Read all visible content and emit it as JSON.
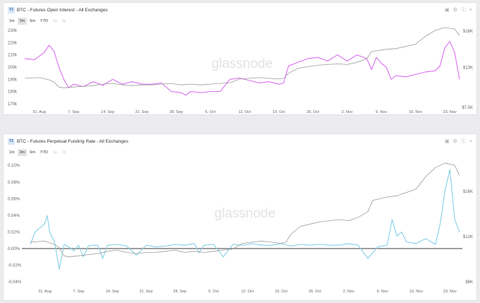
{
  "colors": {
    "purple": "#d96ff0",
    "blue": "#86cfe6",
    "price": "#9c9c9c",
    "axis_text": "#666666",
    "watermark": "#e3e3e3"
  },
  "watermark": "glassnode",
  "panels": [
    {
      "tier": "T2",
      "title": "BTC - Futures Open Interest - All Exchanges",
      "icons": [
        "camera-icon",
        "settings-icon",
        "info-icon",
        "close-icon"
      ],
      "ranges": [
        {
          "label": "1m",
          "state": "normal"
        },
        {
          "label": "3m",
          "state": "active"
        },
        {
          "label": "6m",
          "state": "normal"
        },
        {
          "label": "YTD",
          "state": "normal"
        },
        {
          "label": "1y",
          "state": "disabled"
        },
        {
          "label": "2y",
          "state": "disabled"
        }
      ]
    },
    {
      "tier": "T2",
      "title": "BTC - Futures Perpetual Funding Rate - All Exchanges",
      "icons": [
        "camera-icon",
        "settings-icon",
        "info-icon",
        "close-icon"
      ],
      "ranges": [
        {
          "label": "1m",
          "state": "normal"
        },
        {
          "label": "3m",
          "state": "active"
        },
        {
          "label": "6m",
          "state": "normal"
        },
        {
          "label": "YTD",
          "state": "normal"
        },
        {
          "label": "1y",
          "state": "disabled"
        },
        {
          "label": "2y",
          "state": "disabled"
        }
      ]
    }
  ],
  "chart_data": [
    {
      "type": "line",
      "title": "BTC - Futures Open Interest - All Exchanges",
      "x_ticks": [
        "31. Aug",
        "7. Sep",
        "14. Sep",
        "21. Sep",
        "28. Sep",
        "5. Oct",
        "12. Oct",
        "19. Oct",
        "26. Oct",
        "2. Nov",
        "9. Nov",
        "16. Nov",
        "23. Nov"
      ],
      "x_range": [
        0,
        89
      ],
      "y_left_ticks": [
        "230k",
        "220k",
        "210k",
        "200k",
        "190k",
        "180k",
        "170k"
      ],
      "y_left_values": [
        230,
        220,
        210,
        200,
        190,
        180,
        170
      ],
      "y_left_range": [
        167,
        233
      ],
      "y_right_ticks": [
        "$18K",
        "$13K",
        "$7.5K"
      ],
      "y_right_values": [
        18,
        13,
        7.5
      ],
      "y_right_range": [
        7.5,
        18.6
      ],
      "series": [
        {
          "name": "Futures Open Interest (BTC)",
          "color": "purple",
          "axis": "left",
          "points": [
            [
              0,
              207
            ],
            [
              2,
              206
            ],
            [
              4,
              212
            ],
            [
              5,
              218
            ],
            [
              6,
              213
            ],
            [
              7,
              200
            ],
            [
              8,
              190
            ],
            [
              9,
              183
            ],
            [
              10,
              186
            ],
            [
              12,
              184
            ],
            [
              14,
              188
            ],
            [
              16,
              185
            ],
            [
              18,
              190
            ],
            [
              20,
              186
            ],
            [
              22,
              188
            ],
            [
              24,
              186
            ],
            [
              26,
              186
            ],
            [
              28,
              187
            ],
            [
              30,
              180
            ],
            [
              32,
              179
            ],
            [
              33,
              177
            ],
            [
              34,
              180
            ],
            [
              36,
              179
            ],
            [
              38,
              180
            ],
            [
              40,
              180
            ],
            [
              42,
              190
            ],
            [
              44,
              191
            ],
            [
              46,
              189
            ],
            [
              48,
              187
            ],
            [
              50,
              188
            ],
            [
              52,
              186
            ],
            [
              53,
              187
            ],
            [
              54,
              201
            ],
            [
              56,
              204
            ],
            [
              58,
              207
            ],
            [
              60,
              208
            ],
            [
              62,
              205
            ],
            [
              64,
              210
            ],
            [
              66,
              205
            ],
            [
              68,
              210
            ],
            [
              70,
              207
            ],
            [
              71,
              198
            ],
            [
              72,
              208
            ],
            [
              73,
              203
            ],
            [
              74,
              200
            ],
            [
              75,
              190
            ],
            [
              76,
              193
            ],
            [
              78,
              192
            ],
            [
              80,
              194
            ],
            [
              82,
              196
            ],
            [
              84,
              197
            ],
            [
              85,
              201
            ],
            [
              86,
              216
            ],
            [
              87,
              221
            ],
            [
              88,
              212
            ],
            [
              89,
              190
            ]
          ]
        },
        {
          "name": "BTC Price (USD, thousands)",
          "color": "price",
          "axis": "right",
          "points": [
            [
              0,
              11.5
            ],
            [
              3,
              11.6
            ],
            [
              5,
              11.3
            ],
            [
              6,
              11.0
            ],
            [
              7,
              10.3
            ],
            [
              8,
              10.2
            ],
            [
              10,
              10.3
            ],
            [
              12,
              10.4
            ],
            [
              14,
              10.5
            ],
            [
              16,
              10.7
            ],
            [
              18,
              10.8
            ],
            [
              20,
              10.6
            ],
            [
              22,
              10.5
            ],
            [
              24,
              10.6
            ],
            [
              26,
              10.6
            ],
            [
              28,
              10.7
            ],
            [
              30,
              10.8
            ],
            [
              32,
              10.6
            ],
            [
              34,
              10.7
            ],
            [
              36,
              10.6
            ],
            [
              38,
              10.7
            ],
            [
              40,
              10.8
            ],
            [
              42,
              10.9
            ],
            [
              44,
              11.4
            ],
            [
              46,
              11.5
            ],
            [
              48,
              11.6
            ],
            [
              50,
              11.5
            ],
            [
              52,
              11.4
            ],
            [
              53,
              11.5
            ],
            [
              54,
              12.2
            ],
            [
              56,
              12.9
            ],
            [
              58,
              13.1
            ],
            [
              60,
              13.3
            ],
            [
              62,
              13.4
            ],
            [
              64,
              13.5
            ],
            [
              66,
              13.4
            ],
            [
              68,
              13.7
            ],
            [
              70,
              14.2
            ],
            [
              71,
              15.2
            ],
            [
              72,
              15.3
            ],
            [
              74,
              15.5
            ],
            [
              76,
              15.6
            ],
            [
              78,
              15.9
            ],
            [
              80,
              16.2
            ],
            [
              82,
              17.3
            ],
            [
              84,
              18.1
            ],
            [
              86,
              18.5
            ],
            [
              88,
              18.3
            ],
            [
              89,
              17.4
            ]
          ]
        }
      ]
    },
    {
      "type": "line",
      "title": "BTC - Futures Perpetual Funding Rate - All Exchanges",
      "x_ticks": [
        "31. Aug",
        "7. Sep",
        "14. Sep",
        "21. Sep",
        "28. Sep",
        "5. Oct",
        "12. Oct",
        "19. Oct",
        "26. Oct",
        "2. Nov",
        "9. Nov",
        "16. Nov",
        "23. Nov"
      ],
      "x_range": [
        0,
        89
      ],
      "y_left_ticks": [
        "0.10%",
        "0.08%",
        "0.06%",
        "0.04%",
        "0.02%",
        "0.00%",
        "-0.02%",
        "-0.04%"
      ],
      "y_left_values": [
        0.1,
        0.08,
        0.06,
        0.04,
        0.02,
        0.0,
        -0.02,
        -0.04
      ],
      "y_left_range": [
        -0.04,
        0.107
      ],
      "y_right_ticks": [
        "$16K",
        "$12K",
        "$8K"
      ],
      "y_right_values": [
        16,
        12,
        8
      ],
      "y_right_range": [
        8,
        18.8
      ],
      "zero_line": 0,
      "series": [
        {
          "name": "Funding Rate (%)",
          "color": "blue",
          "axis": "left",
          "points": [
            [
              0,
              0.005
            ],
            [
              1,
              0.02
            ],
            [
              2,
              0.025
            ],
            [
              3,
              0.03
            ],
            [
              3.5,
              0.04
            ],
            [
              4,
              0.02
            ],
            [
              5,
              0.008
            ],
            [
              6,
              -0.025
            ],
            [
              7,
              0.005
            ],
            [
              8,
              0.002
            ],
            [
              9,
              -0.003
            ],
            [
              10,
              0.004
            ],
            [
              11,
              -0.01
            ],
            [
              12,
              0.003
            ],
            [
              13,
              0.004
            ],
            [
              14,
              0.004
            ],
            [
              15,
              -0.012
            ],
            [
              16,
              0.004
            ],
            [
              18,
              0.005
            ],
            [
              20,
              0.003
            ],
            [
              22,
              -0.008
            ],
            [
              24,
              0.004
            ],
            [
              26,
              0.002
            ],
            [
              28,
              0.003
            ],
            [
              30,
              0.005
            ],
            [
              32,
              0.004
            ],
            [
              34,
              0.006
            ],
            [
              35,
              -0.005
            ],
            [
              36,
              0.004
            ],
            [
              38,
              0.005
            ],
            [
              40,
              -0.01
            ],
            [
              42,
              0.005
            ],
            [
              44,
              0.004
            ],
            [
              46,
              0.006
            ],
            [
              48,
              0.004
            ],
            [
              50,
              0.004
            ],
            [
              52,
              0.006
            ],
            [
              54,
              0.003
            ],
            [
              56,
              0.005
            ],
            [
              58,
              0.004
            ],
            [
              60,
              0.005
            ],
            [
              62,
              0.004
            ],
            [
              64,
              0.004
            ],
            [
              66,
              0.006
            ],
            [
              68,
              0.004
            ],
            [
              70,
              -0.012
            ],
            [
              72,
              0.002
            ],
            [
              74,
              0.004
            ],
            [
              75,
              0.035
            ],
            [
              76,
              0.015
            ],
            [
              77,
              0.02
            ],
            [
              78,
              0.008
            ],
            [
              80,
              0.006
            ],
            [
              82,
              0.012
            ],
            [
              84,
              0.005
            ],
            [
              85,
              0.03
            ],
            [
              86,
              0.07
            ],
            [
              87,
              0.095
            ],
            [
              88,
              0.035
            ],
            [
              89,
              0.02
            ]
          ]
        },
        {
          "name": "BTC Price (USD, thousands)",
          "color": "price",
          "axis": "right",
          "points": [
            [
              0,
              11.5
            ],
            [
              3,
              11.6
            ],
            [
              5,
              11.3
            ],
            [
              6,
              11.0
            ],
            [
              7,
              10.3
            ],
            [
              8,
              10.2
            ],
            [
              10,
              10.3
            ],
            [
              12,
              10.4
            ],
            [
              14,
              10.5
            ],
            [
              16,
              10.7
            ],
            [
              18,
              10.8
            ],
            [
              20,
              10.6
            ],
            [
              22,
              10.5
            ],
            [
              24,
              10.6
            ],
            [
              26,
              10.6
            ],
            [
              28,
              10.7
            ],
            [
              30,
              10.8
            ],
            [
              32,
              10.6
            ],
            [
              34,
              10.7
            ],
            [
              36,
              10.6
            ],
            [
              38,
              10.7
            ],
            [
              40,
              10.8
            ],
            [
              42,
              10.9
            ],
            [
              44,
              11.4
            ],
            [
              46,
              11.5
            ],
            [
              48,
              11.6
            ],
            [
              50,
              11.5
            ],
            [
              52,
              11.4
            ],
            [
              53,
              11.5
            ],
            [
              54,
              12.2
            ],
            [
              56,
              12.9
            ],
            [
              58,
              13.1
            ],
            [
              60,
              13.3
            ],
            [
              62,
              13.4
            ],
            [
              64,
              13.5
            ],
            [
              66,
              13.4
            ],
            [
              68,
              13.7
            ],
            [
              70,
              14.2
            ],
            [
              71,
              15.2
            ],
            [
              72,
              15.3
            ],
            [
              74,
              15.5
            ],
            [
              76,
              15.6
            ],
            [
              78,
              15.9
            ],
            [
              80,
              16.2
            ],
            [
              82,
              17.3
            ],
            [
              84,
              18.1
            ],
            [
              86,
              18.5
            ],
            [
              88,
              18.3
            ],
            [
              89,
              17.4
            ]
          ]
        }
      ]
    }
  ]
}
